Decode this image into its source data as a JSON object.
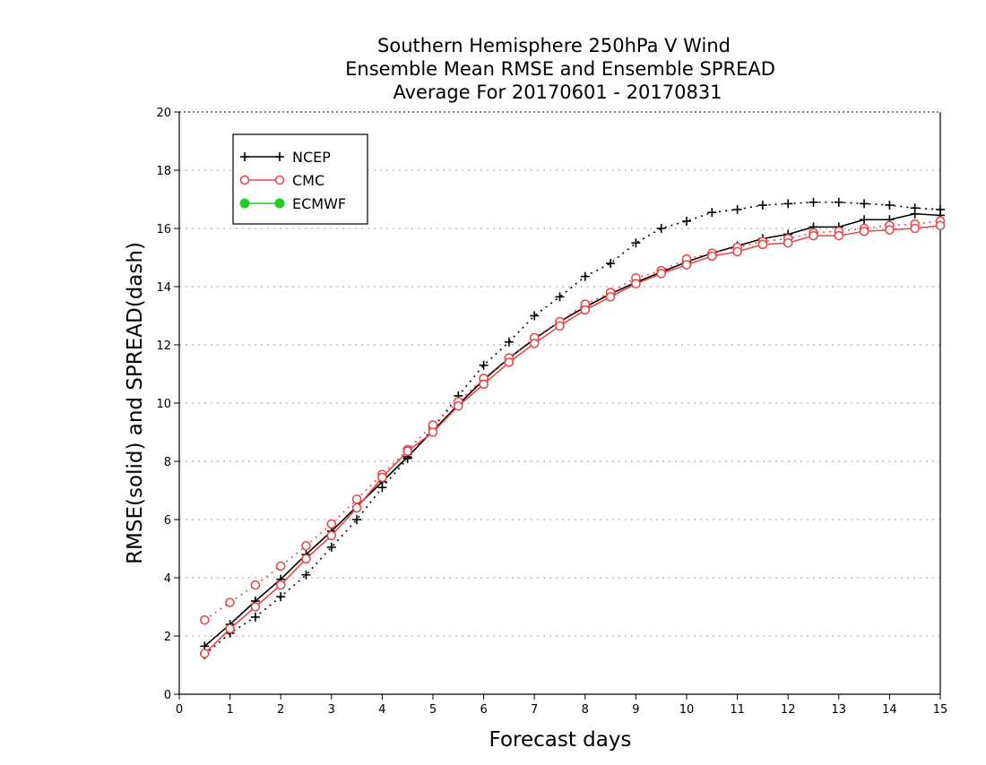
{
  "chart_data": {
    "type": "line",
    "title_lines": [
      "Southern Hemisphere 250hPa V Wind",
      "Ensemble Mean RMSE and Ensemble SPREAD",
      "Average For 20170601 - 20170831"
    ],
    "xlabel": "Forecast days",
    "ylabel": "RMSE(solid) and SPREAD(dash)",
    "xlim": [
      0,
      15
    ],
    "ylim": [
      0,
      20
    ],
    "x_ticks": [
      0,
      1,
      2,
      3,
      4,
      5,
      6,
      7,
      8,
      9,
      10,
      11,
      12,
      13,
      14,
      15
    ],
    "y_ticks": [
      0,
      2,
      4,
      6,
      8,
      10,
      12,
      14,
      16,
      18,
      20
    ],
    "grid": "horizontal-dotted",
    "legend_position": "top-left",
    "x": [
      0.5,
      1,
      1.5,
      2,
      2.5,
      3,
      3.5,
      4,
      4.5,
      5,
      5.5,
      6,
      6.5,
      7,
      7.5,
      8,
      8.5,
      9,
      9.5,
      10,
      10.5,
      11,
      11.5,
      12,
      12.5,
      13,
      13.5,
      14,
      14.5,
      15
    ],
    "series": [
      {
        "name": "NCEP",
        "color": "#000000",
        "marker": "plus",
        "rmse": [
          1.65,
          2.4,
          3.2,
          3.95,
          4.8,
          5.6,
          6.45,
          7.3,
          8.15,
          9.05,
          9.95,
          10.8,
          11.55,
          12.2,
          12.8,
          13.3,
          13.75,
          14.15,
          14.5,
          14.85,
          15.15,
          15.4,
          15.65,
          15.8,
          16.05,
          16.05,
          16.3,
          16.3,
          16.5,
          16.45
        ],
        "spread": [
          1.35,
          2.1,
          2.65,
          3.35,
          4.1,
          5.05,
          6.0,
          7.1,
          8.1,
          9.15,
          10.25,
          11.3,
          12.1,
          13.0,
          13.65,
          14.35,
          14.8,
          15.5,
          16.0,
          16.25,
          16.55,
          16.65,
          16.8,
          16.85,
          16.9,
          16.9,
          16.85,
          16.8,
          16.7,
          16.65
        ]
      },
      {
        "name": "CMC",
        "color": "#e84848",
        "marker": "circle",
        "rmse": [
          1.4,
          2.25,
          3.0,
          3.75,
          4.65,
          5.45,
          6.4,
          7.45,
          8.35,
          9.0,
          9.9,
          10.65,
          11.4,
          12.05,
          12.65,
          13.2,
          13.65,
          14.1,
          14.45,
          14.75,
          15.05,
          15.2,
          15.45,
          15.5,
          15.75,
          15.75,
          15.9,
          15.95,
          16.0,
          16.1
        ],
        "spread": [
          2.55,
          3.15,
          3.75,
          4.4,
          5.1,
          5.85,
          6.7,
          7.55,
          8.4,
          9.25,
          10.05,
          10.85,
          11.55,
          12.25,
          12.8,
          13.4,
          13.8,
          14.3,
          14.55,
          14.95,
          15.15,
          15.35,
          15.55,
          15.65,
          15.85,
          15.9,
          16.0,
          16.1,
          16.15,
          16.25
        ]
      },
      {
        "name": "ECMWF",
        "color": "#22cc22",
        "marker": "dot",
        "rmse": [],
        "spread": []
      }
    ]
  }
}
